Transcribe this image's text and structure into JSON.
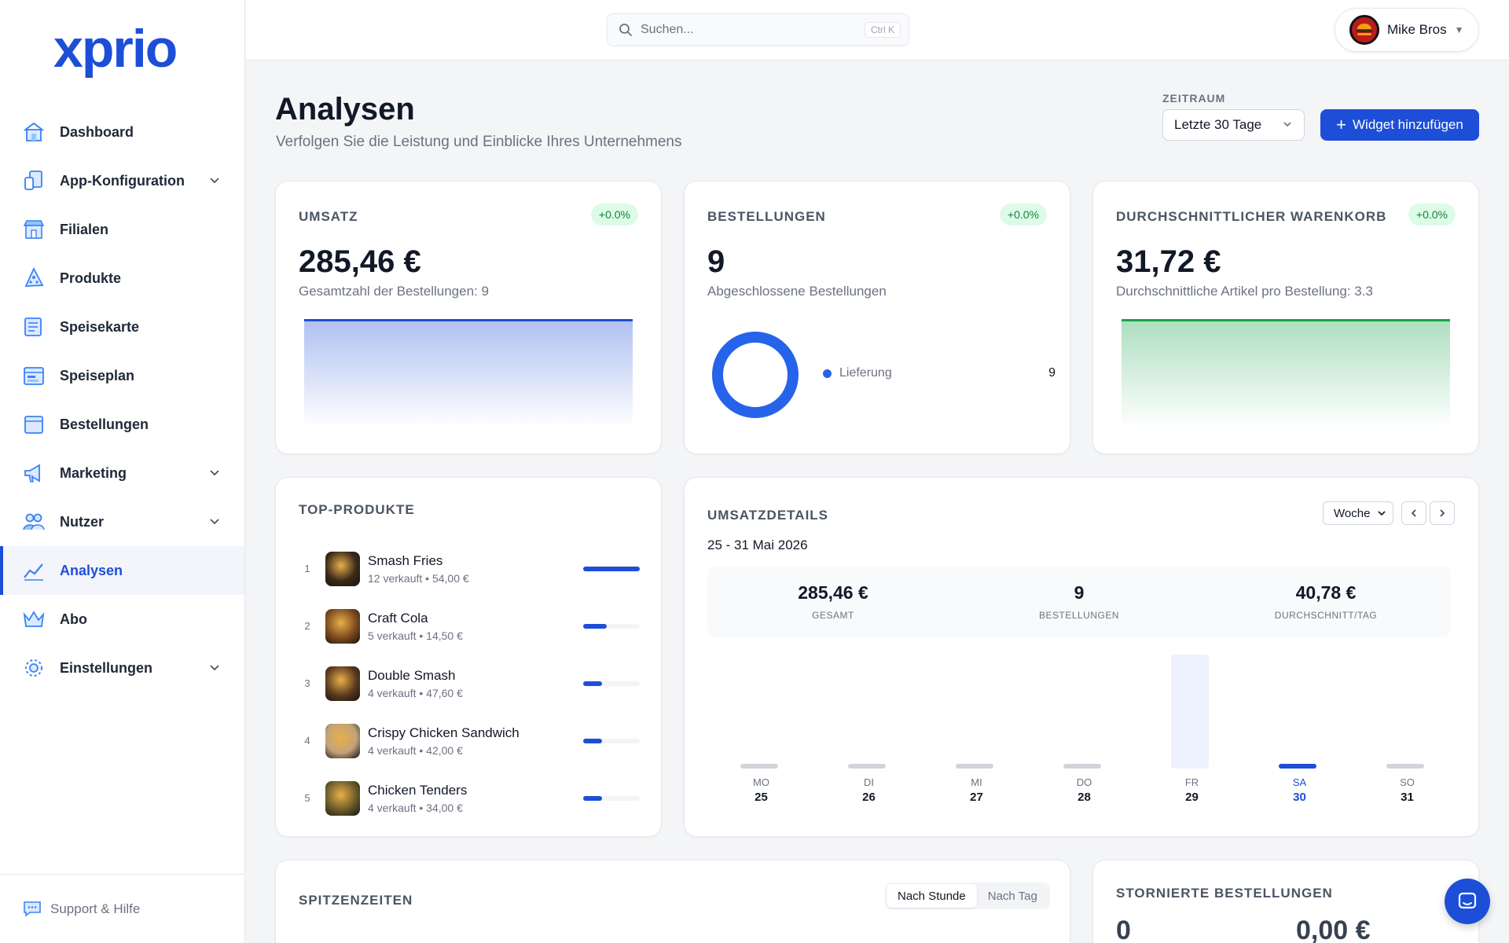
{
  "brand": {
    "logo_text": "xprio",
    "accent": "#1d4ed8"
  },
  "sidebar": {
    "items": [
      {
        "label": "Dashboard",
        "icon": "home-icon",
        "expandable": false,
        "active": false
      },
      {
        "label": "App-Konfiguration",
        "icon": "devices-icon",
        "expandable": true,
        "active": false
      },
      {
        "label": "Filialen",
        "icon": "store-icon",
        "expandable": false,
        "active": false
      },
      {
        "label": "Produkte",
        "icon": "pizza-icon",
        "expandable": false,
        "active": false
      },
      {
        "label": "Speisekarte",
        "icon": "menu-card-icon",
        "expandable": false,
        "active": false
      },
      {
        "label": "Speiseplan",
        "icon": "calendar-plan-icon",
        "expandable": false,
        "active": false
      },
      {
        "label": "Bestellungen",
        "icon": "orders-icon",
        "expandable": false,
        "active": false
      },
      {
        "label": "Marketing",
        "icon": "megaphone-icon",
        "expandable": true,
        "active": false
      },
      {
        "label": "Nutzer",
        "icon": "users-icon",
        "expandable": true,
        "active": false
      },
      {
        "label": "Analysen",
        "icon": "analytics-icon",
        "expandable": false,
        "active": true
      },
      {
        "label": "Abo",
        "icon": "crown-icon",
        "expandable": false,
        "active": false
      },
      {
        "label": "Einstellungen",
        "icon": "settings-icon",
        "expandable": true,
        "active": false
      }
    ],
    "footer_label": "Support & Hilfe"
  },
  "topbar": {
    "search_placeholder": "Suchen...",
    "search_shortcut": "Ctrl K",
    "user_name": "Mike Bros"
  },
  "header": {
    "title": "Analysen",
    "subtitle": "Verfolgen Sie die Leistung und Einblicke Ihres Unternehmens",
    "period_label": "ZEITRAUM",
    "period_value": "Letzte 30 Tage",
    "add_widget_label": "Widget hinzufügen"
  },
  "kpis": {
    "revenue": {
      "title": "UMSATZ",
      "badge": "+0.0%",
      "value": "285,46 €",
      "sub": "Gesamtzahl der Bestellungen: 9"
    },
    "orders": {
      "title": "BESTELLUNGEN",
      "badge": "+0.0%",
      "value": "9",
      "sub": "Abgeschlossene Bestellungen",
      "legend_label": "Lieferung",
      "legend_value": "9"
    },
    "basket": {
      "title": "DURCHSCHNITTLICHER WARENKORB",
      "badge": "+0.0%",
      "value": "31,72 €",
      "sub": "Durchschnittliche Artikel pro Bestellung: 3.3"
    }
  },
  "top_products": {
    "title": "TOP-PRODUKTE",
    "items": [
      {
        "rank": "1",
        "name": "Smash Fries",
        "meta": "12 verkauft • 54,00 €",
        "share": 1.0,
        "color": "#3b2a1a"
      },
      {
        "rank": "2",
        "name": "Craft Cola",
        "meta": "5 verkauft • 14,50 €",
        "share": 0.42,
        "color": "#7c4a1e"
      },
      {
        "rank": "3",
        "name": "Double Smash",
        "meta": "4 verkauft • 47,60 €",
        "share": 0.33,
        "color": "#5b3a1f"
      },
      {
        "rank": "4",
        "name": "Crispy Chicken Sandwich",
        "meta": "4 verkauft • 42,00 €",
        "share": 0.33,
        "color": "#c2a27a"
      },
      {
        "rank": "5",
        "name": "Chicken Tenders",
        "meta": "4 verkauft • 34,00 €",
        "share": 0.33,
        "color": "#6b5a2a"
      }
    ]
  },
  "sales_details": {
    "title": "UMSATZDETAILS",
    "granularity": "Woche",
    "date_range": "25 - 31 Mai 2026",
    "stats": [
      {
        "value": "285,46 €",
        "label": "GESAMT"
      },
      {
        "value": "9",
        "label": "BESTELLUNGEN"
      },
      {
        "value": "40,78 €",
        "label": "DURCHSCHNITT/TAG"
      }
    ],
    "days": [
      {
        "name": "MO",
        "num": "25",
        "level": 0.0,
        "highlight": false,
        "selected": false
      },
      {
        "name": "DI",
        "num": "26",
        "level": 0.0,
        "highlight": false,
        "selected": false
      },
      {
        "name": "MI",
        "num": "27",
        "level": 0.0,
        "highlight": false,
        "selected": false
      },
      {
        "name": "DO",
        "num": "28",
        "level": 0.0,
        "highlight": false,
        "selected": false
      },
      {
        "name": "FR",
        "num": "29",
        "level": 1.0,
        "highlight": true,
        "selected": false
      },
      {
        "name": "SA",
        "num": "30",
        "level": 0.0,
        "highlight": false,
        "selected": true
      },
      {
        "name": "SO",
        "num": "31",
        "level": 0.0,
        "highlight": false,
        "selected": false
      }
    ]
  },
  "peak_times": {
    "title": "SPITZENZEITEN",
    "tab_hour": "Nach Stunde",
    "tab_day": "Nach Tag"
  },
  "cancelled": {
    "title": "STORNIERTE BESTELLUNGEN",
    "count": "0",
    "amount": "0,00 €"
  }
}
